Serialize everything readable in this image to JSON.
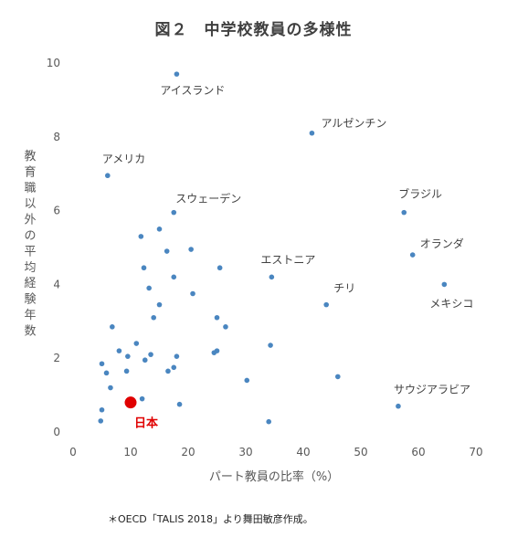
{
  "title": "図２　中学校教員の多様性",
  "footnote": "＊OECD「TALIS 2018」より舞田敏彦作成。",
  "chart_data": {
    "type": "scatter",
    "xlabel": "パート教員の比率（%）",
    "ylabel": "教育職以外の平均経験年数",
    "xlim": [
      0,
      70
    ],
    "ylim": [
      0,
      10
    ],
    "xticks": [
      "0",
      "10",
      "20",
      "30",
      "40",
      "50",
      "60",
      "70"
    ],
    "yticks": [
      "0",
      "2",
      "4",
      "6",
      "8",
      "10"
    ],
    "grid": false,
    "point_color": "#4a86c0",
    "highlight_color": "#e00000",
    "labeled_points": [
      {
        "label": "アイスランド",
        "x": 18.0,
        "y": 9.7
      },
      {
        "label": "アルゼンチン",
        "x": 41.5,
        "y": 8.1
      },
      {
        "label": "アメリカ",
        "x": 6.0,
        "y": 6.95
      },
      {
        "label": "スウェーデン",
        "x": 17.5,
        "y": 5.95
      },
      {
        "label": "ブラジル",
        "x": 57.5,
        "y": 5.95
      },
      {
        "label": "オランダ",
        "x": 59.0,
        "y": 4.8
      },
      {
        "label": "エストニア",
        "x": 34.5,
        "y": 4.2
      },
      {
        "label": "メキシコ",
        "x": 64.5,
        "y": 4.0
      },
      {
        "label": "チリ",
        "x": 44.0,
        "y": 3.45
      },
      {
        "label": "サウジアラビア",
        "x": 56.5,
        "y": 0.7
      }
    ],
    "highlight": {
      "label": "日本",
      "x": 10.0,
      "y": 0.8
    },
    "points": [
      [
        11.8,
        5.3
      ],
      [
        15.0,
        5.5
      ],
      [
        16.3,
        4.9
      ],
      [
        20.5,
        4.95
      ],
      [
        12.3,
        4.45
      ],
      [
        17.5,
        4.2
      ],
      [
        25.5,
        4.45
      ],
      [
        13.2,
        3.9
      ],
      [
        20.8,
        3.75
      ],
      [
        15.0,
        3.45
      ],
      [
        14.0,
        3.1
      ],
      [
        25.0,
        3.1
      ],
      [
        26.5,
        2.85
      ],
      [
        6.8,
        2.85
      ],
      [
        11.0,
        2.4
      ],
      [
        8.0,
        2.2
      ],
      [
        9.5,
        2.05
      ],
      [
        12.5,
        1.95
      ],
      [
        13.5,
        2.1
      ],
      [
        18.0,
        2.05
      ],
      [
        25.0,
        2.2
      ],
      [
        24.5,
        2.15
      ],
      [
        34.3,
        2.35
      ],
      [
        5.0,
        1.85
      ],
      [
        5.8,
        1.6
      ],
      [
        9.3,
        1.65
      ],
      [
        17.5,
        1.75
      ],
      [
        16.5,
        1.65
      ],
      [
        30.2,
        1.4
      ],
      [
        46.0,
        1.5
      ],
      [
        6.5,
        1.2
      ],
      [
        12.0,
        0.9
      ],
      [
        18.5,
        0.75
      ],
      [
        5.0,
        0.6
      ],
      [
        4.8,
        0.3
      ],
      [
        34.0,
        0.28
      ]
    ]
  }
}
